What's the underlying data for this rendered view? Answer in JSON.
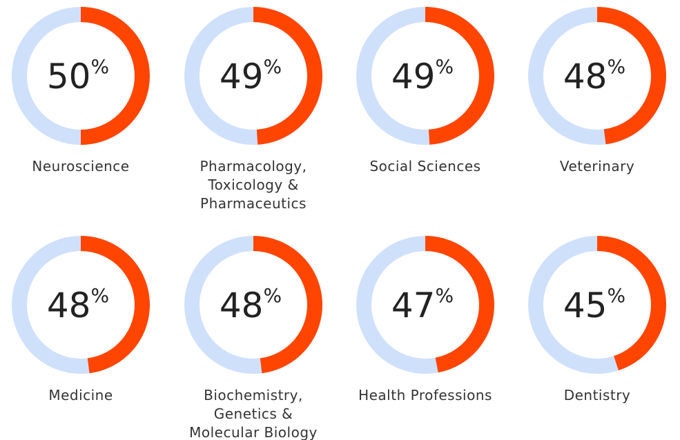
{
  "chart_data": [
    {
      "type": "donut",
      "title": "Neuroscience",
      "values": [
        50
      ],
      "unit": "%",
      "color": "#ff4500",
      "track_color": "#cfe0fb"
    },
    {
      "type": "donut",
      "title": "Pharmacology, Toxicology & Pharmaceutics",
      "values": [
        49
      ],
      "unit": "%",
      "color": "#ff4500",
      "track_color": "#cfe0fb"
    },
    {
      "type": "donut",
      "title": "Social Sciences",
      "values": [
        49
      ],
      "unit": "%",
      "color": "#ff4500",
      "track_color": "#cfe0fb"
    },
    {
      "type": "donut",
      "title": "Veterinary",
      "values": [
        48
      ],
      "unit": "%",
      "color": "#ff4500",
      "track_color": "#cfe0fb"
    },
    {
      "type": "donut",
      "title": "Medicine",
      "values": [
        48
      ],
      "unit": "%",
      "color": "#ff4500",
      "track_color": "#cfe0fb"
    },
    {
      "type": "donut",
      "title": "Biochemistry, Genetics & Molecular Biology",
      "values": [
        48
      ],
      "unit": "%",
      "color": "#ff4500",
      "track_color": "#cfe0fb"
    },
    {
      "type": "donut",
      "title": "Health Professions",
      "values": [
        47
      ],
      "unit": "%",
      "color": "#ff4500",
      "track_color": "#cfe0fb"
    },
    {
      "type": "donut",
      "title": "Dentistry",
      "values": [
        45
      ],
      "unit": "%",
      "color": "#ff4500",
      "track_color": "#cfe0fb"
    }
  ]
}
